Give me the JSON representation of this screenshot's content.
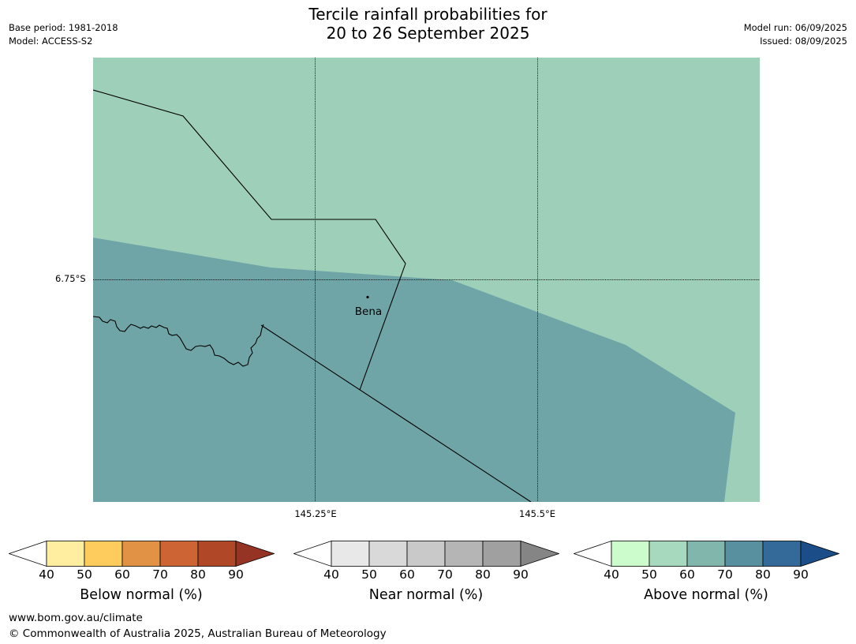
{
  "header": {
    "title_line1": "Tercile rainfall probabilities for",
    "title_line2": "20 to 26 September 2025",
    "base_period": "Base period: 1981-2018",
    "model": "Model: ACCESS-S2",
    "model_run": "Model run: 06/09/2025",
    "issued": "Issued: 08/09/2025"
  },
  "map": {
    "latitude_label": "6.75°S",
    "longitude_labels": [
      "145.25°E",
      "145.5°E"
    ],
    "place_name": "Bena",
    "regions": [
      {
        "category": "Above normal",
        "probability_range": "50-60",
        "color": "#9ed0b9"
      },
      {
        "category": "Above normal",
        "probability_range": "60-70",
        "color": "#70a5a8"
      }
    ]
  },
  "colorbars": [
    {
      "label": "Below normal (%)",
      "ticks": [
        "40",
        "50",
        "60",
        "70",
        "80",
        "90"
      ],
      "colors": [
        "#ffffff",
        "#ffeda0",
        "#fecc5c",
        "#e19244",
        "#cd6433",
        "#b04828",
        "#953325"
      ]
    },
    {
      "label": "Near normal (%)",
      "ticks": [
        "40",
        "50",
        "60",
        "70",
        "80",
        "90"
      ],
      "colors": [
        "#ffffff",
        "#e8e8e8",
        "#d9d9d9",
        "#c9c9c9",
        "#b5b5b5",
        "#a0a0a0",
        "#858585"
      ]
    },
    {
      "label": "Above normal (%)",
      "ticks": [
        "40",
        "50",
        "60",
        "70",
        "80",
        "90"
      ],
      "colors": [
        "#ffffff",
        "#ccfccc",
        "#a6d9bd",
        "#80b6ac",
        "#5890a0",
        "#336a99",
        "#1b4d88"
      ]
    }
  ],
  "footer": {
    "website": "www.bom.gov.au/climate",
    "copyright": "© Commonwealth of Australia 2025, Australian Bureau of Meteorology"
  }
}
